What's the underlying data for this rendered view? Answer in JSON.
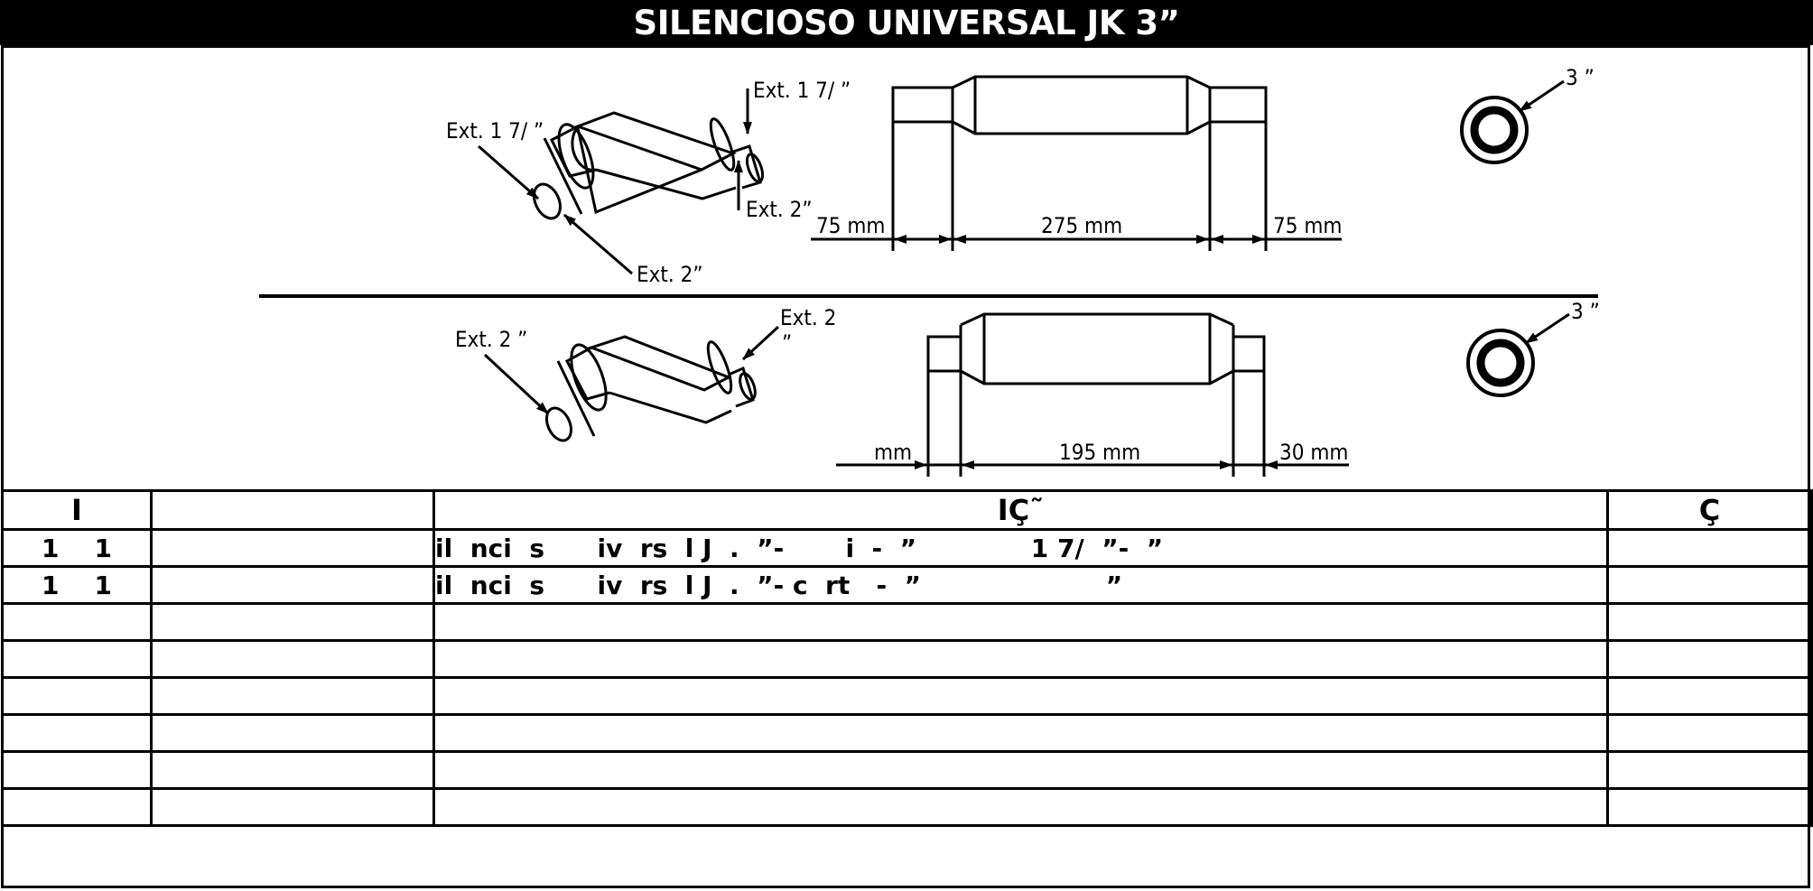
{
  "title": "SILENCIOSO UNIVERSAL JK  3”",
  "diagram": {
    "top": {
      "left_label_1": "Ext. 1 7/  ”",
      "left_label_2": "Ext. 1 7/  ”",
      "left_label_3": "Ext. 2”",
      "left_label_4": "Ext. 2”",
      "dim_left": "75  mm",
      "dim_mid": "275  mm",
      "dim_right": "75  mm",
      "ring_label": "3 ”"
    },
    "bottom": {
      "left_label_1": "Ext. 2 ”",
      "left_label_2": "Ext. 2",
      "left_label_2b": "”",
      "dim_left": "mm",
      "dim_mid": "195  mm",
      "dim_right": "30  mm",
      "ring_label": "3 ”"
    }
  },
  "table": {
    "headers": [
      "I",
      "",
      "IÇ˜",
      "Ç"
    ],
    "rows": [
      [
        "1    1",
        "",
        "il  nci  s      iv  rs  l J  .  ”-       i  -  ”             1 7/  ”-  ”",
        ""
      ],
      [
        "1    1",
        "",
        "il  nci  s      iv  rs  l J  .  ”- c  rt   -  ”                     ”",
        ""
      ],
      [
        "",
        "",
        "",
        ""
      ],
      [
        "",
        "",
        "",
        ""
      ],
      [
        "",
        "",
        "",
        ""
      ],
      [
        "",
        "",
        "",
        ""
      ],
      [
        "",
        "",
        "",
        ""
      ],
      [
        "",
        "",
        "",
        ""
      ]
    ]
  }
}
